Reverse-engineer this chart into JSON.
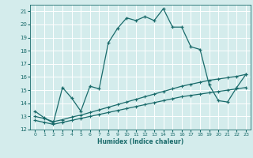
{
  "xlabel": "Humidex (Indice chaleur)",
  "bg_color": "#d4ecec",
  "grid_color": "#ffffff",
  "line_color": "#1a6b6b",
  "xlim": [
    -0.5,
    23.5
  ],
  "ylim": [
    12,
    21.5
  ],
  "yticks": [
    12,
    13,
    14,
    15,
    16,
    17,
    18,
    19,
    20,
    21
  ],
  "xticks": [
    0,
    1,
    2,
    3,
    4,
    5,
    6,
    7,
    8,
    9,
    10,
    11,
    12,
    13,
    14,
    15,
    16,
    17,
    18,
    19,
    20,
    21,
    22,
    23
  ],
  "curve1_x": [
    0,
    1,
    2,
    3,
    4,
    5,
    6,
    7,
    8,
    9,
    10,
    11,
    12,
    13,
    14,
    15,
    16,
    17,
    18,
    19,
    20,
    21,
    22,
    23
  ],
  "curve1_y": [
    13.4,
    12.9,
    12.5,
    15.2,
    14.4,
    13.4,
    15.3,
    15.1,
    18.6,
    19.7,
    20.5,
    20.3,
    20.6,
    20.3,
    21.2,
    19.8,
    19.8,
    18.3,
    18.1,
    15.4,
    14.2,
    14.1,
    15.2,
    16.2
  ],
  "curve2_x": [
    0,
    1,
    2,
    3,
    4,
    5,
    6,
    7,
    8,
    9,
    10,
    11,
    12,
    13,
    14,
    15,
    16,
    17,
    18,
    19,
    20,
    21,
    22,
    23
  ],
  "curve2_y": [
    13.0,
    12.85,
    12.6,
    12.75,
    12.95,
    13.1,
    13.3,
    13.5,
    13.7,
    13.9,
    14.1,
    14.3,
    14.5,
    14.7,
    14.9,
    15.1,
    15.3,
    15.45,
    15.6,
    15.75,
    15.85,
    15.95,
    16.05,
    16.2
  ],
  "curve3_x": [
    0,
    1,
    2,
    3,
    4,
    5,
    6,
    7,
    8,
    9,
    10,
    11,
    12,
    13,
    14,
    15,
    16,
    17,
    18,
    19,
    20,
    21,
    22,
    23
  ],
  "curve3_y": [
    12.7,
    12.55,
    12.4,
    12.55,
    12.7,
    12.85,
    13.0,
    13.15,
    13.3,
    13.45,
    13.6,
    13.75,
    13.9,
    14.05,
    14.2,
    14.35,
    14.5,
    14.6,
    14.7,
    14.8,
    14.9,
    15.0,
    15.1,
    15.2
  ]
}
